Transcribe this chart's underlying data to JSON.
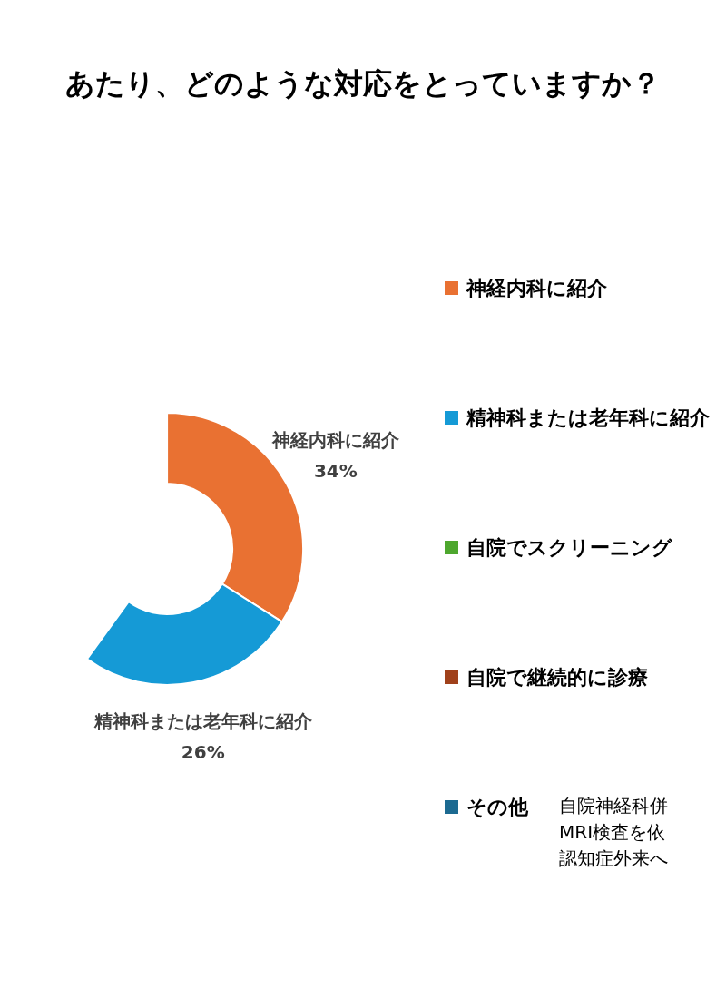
{
  "chart_data": {
    "type": "donut",
    "title": "あたり、どのような対応をとっていますか？",
    "categories": [
      "神経内科に紹介",
      "精神科または老年科に紹介",
      "自院でスクリーニング",
      "自院で継続的に診療",
      "その他"
    ],
    "values": [
      34,
      26,
      null,
      null,
      null
    ],
    "colors": [
      "#e97132",
      "#159ad6",
      "#4ea72e",
      "#a0411b",
      "#1c6a91"
    ],
    "value_labels": [
      "34%",
      "26%",
      null,
      null,
      null
    ],
    "legend": "right",
    "annotations": [
      "自院神経科併",
      "MRI検査を依",
      "認知症外来へ"
    ]
  }
}
